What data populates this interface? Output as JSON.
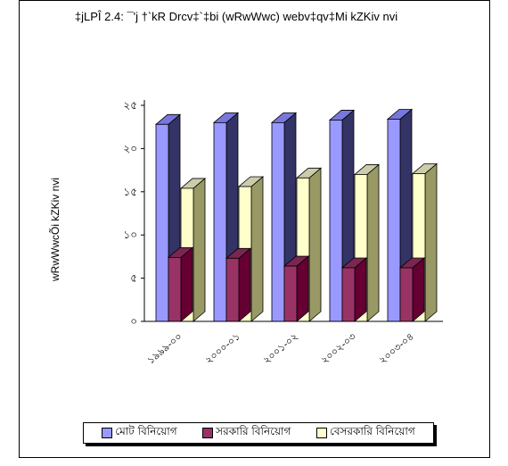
{
  "title": "‡jLPÎ 2.4: ¯'j †`kR Drcv‡`‡bi (wRwWwc) webv‡qv‡Mi kZKiv nvi",
  "chart_data": {
    "type": "bar",
    "title": "‡jLPÎ 2.4: ¯'j †`kR Drcv‡`‡bi (wRwWwc) webv‡qv‡Mi kZKiv nvi",
    "ylabel": "wRwWwcÕi kZKiv nvi",
    "xlabel": "",
    "categories": [
      "১৯৯৯-০০",
      "২০০০-০১",
      "২০০১-০২",
      "২০০২-০৩",
      "২০০৩-০৪"
    ],
    "yticks": [
      "০",
      "৫",
      "১০",
      "১৫",
      "২০",
      "২৫"
    ],
    "ylim": [
      0,
      25
    ],
    "grid": false,
    "legend_position": "bottom",
    "series": [
      {
        "name": "মোট বিনিয়োগ",
        "values": [
          22.8,
          23.0,
          23.0,
          23.3,
          23.4
        ],
        "color": "#9999ff"
      },
      {
        "name": "সরকারি বিনিয়োগ",
        "values": [
          7.4,
          7.3,
          6.4,
          6.2,
          6.2
        ],
        "color": "#993366"
      },
      {
        "name": "বেসরকারি বিনিয়োগ",
        "values": [
          15.4,
          15.6,
          16.6,
          17.0,
          17.1
        ],
        "color": "#ffffcc"
      }
    ]
  }
}
